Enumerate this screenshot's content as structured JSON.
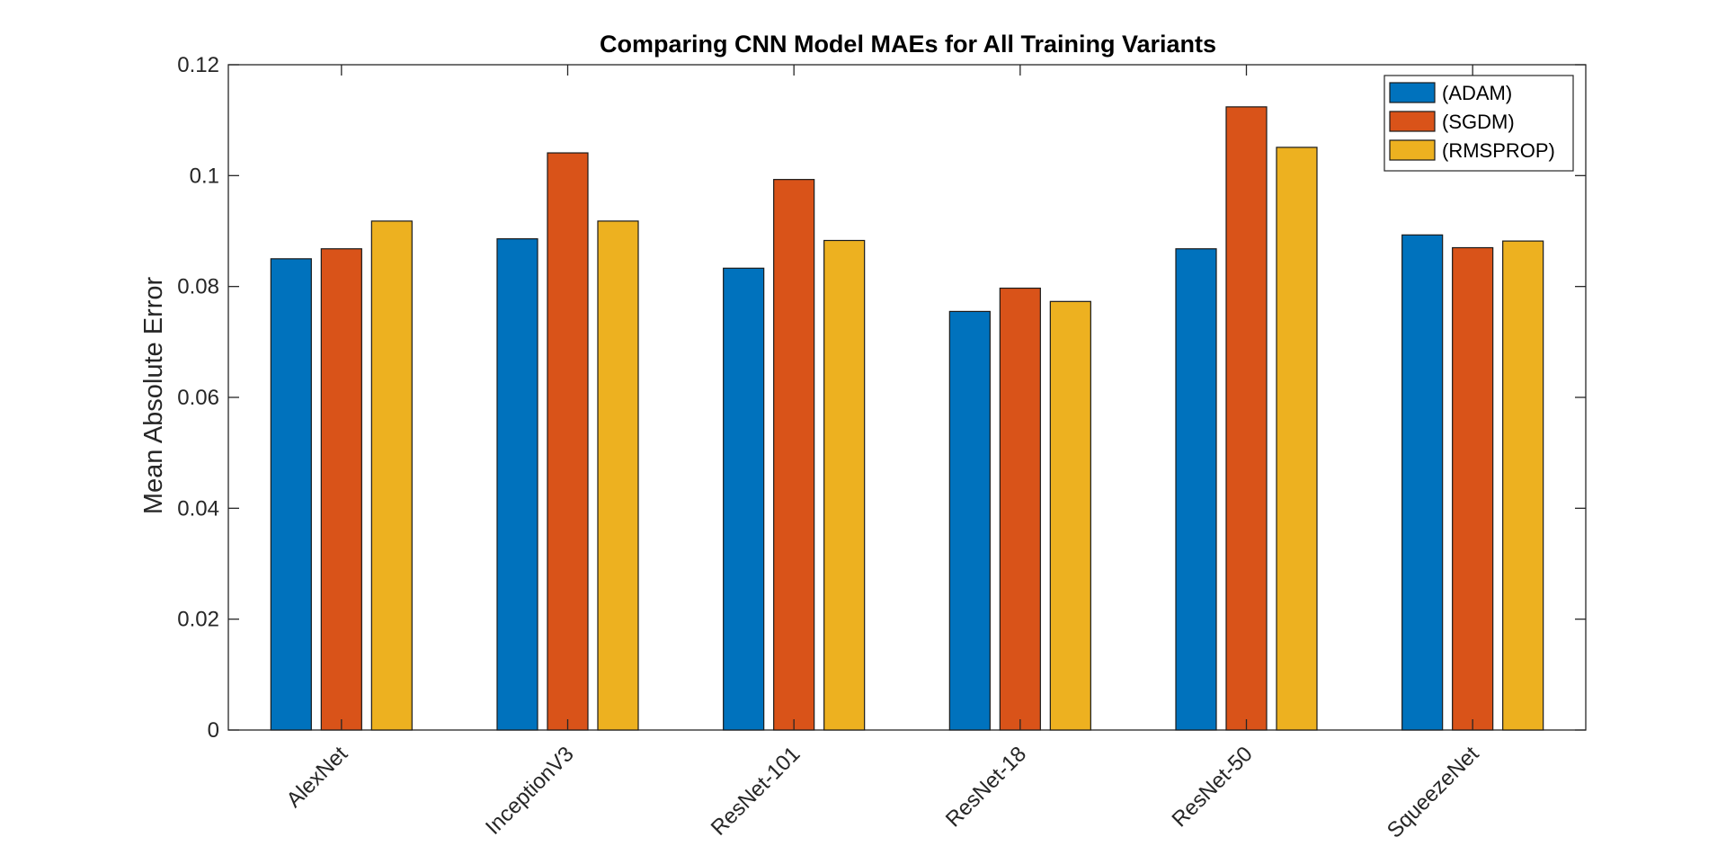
{
  "chart_data": {
    "type": "bar",
    "title": "Comparing CNN Model MAEs for All Training Variants",
    "xlabel": "",
    "ylabel": "Mean Absolute Error",
    "ylim": [
      0,
      0.12
    ],
    "yticks": [
      {
        "value": 0,
        "label": "0"
      },
      {
        "value": 0.02,
        "label": "0.02"
      },
      {
        "value": 0.04,
        "label": "0.04"
      },
      {
        "value": 0.06,
        "label": "0.06"
      },
      {
        "value": 0.08,
        "label": "0.08"
      },
      {
        "value": 0.1,
        "label": "0.1"
      },
      {
        "value": 0.12,
        "label": "0.12"
      }
    ],
    "categories": [
      "AlexNet",
      "InceptionV3",
      "ResNet-101",
      "ResNet-18",
      "ResNet-50",
      "SqueezeNet"
    ],
    "series": [
      {
        "name": "(ADAM)",
        "color": "#0072BD",
        "values": [
          0.085,
          0.0886,
          0.0833,
          0.0755,
          0.0868,
          0.0893
        ]
      },
      {
        "name": "(SGDM)",
        "color": "#D95319",
        "values": [
          0.0868,
          0.1041,
          0.0993,
          0.0797,
          0.1124,
          0.087
        ]
      },
      {
        "name": "(RMSPROP)",
        "color": "#EDB120",
        "values": [
          0.0918,
          0.0918,
          0.0883,
          0.0773,
          0.1051,
          0.0882
        ]
      }
    ],
    "grid": false,
    "legend_position": "top-right",
    "box": true
  }
}
